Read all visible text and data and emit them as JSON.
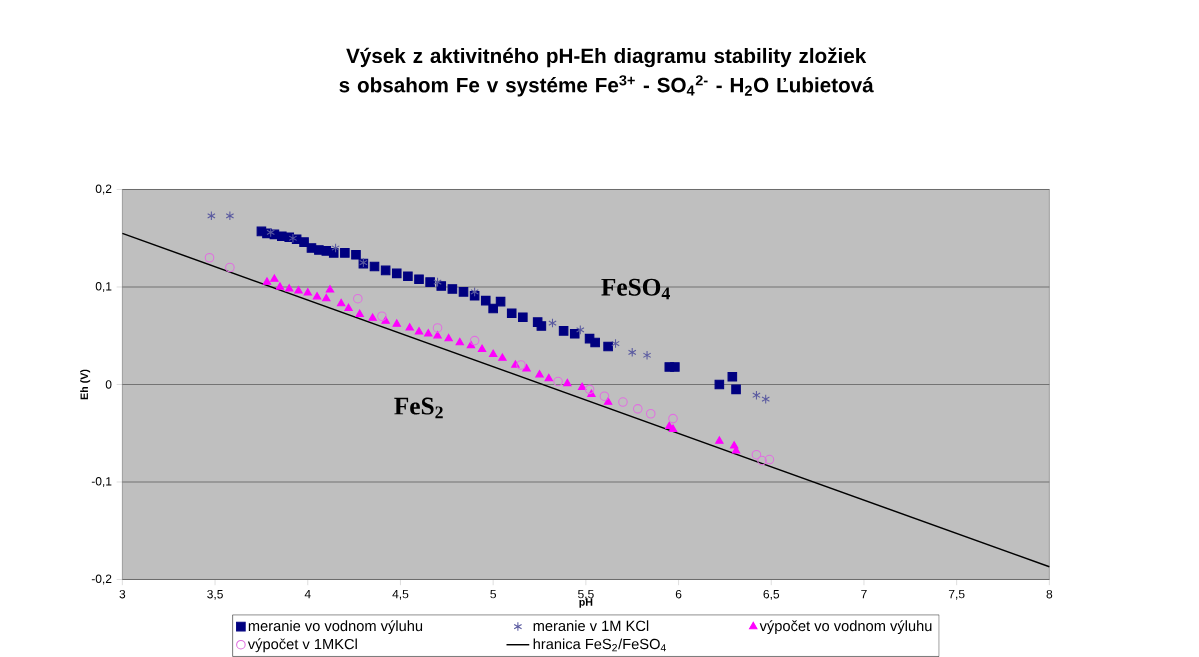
{
  "chart_data": {
    "type": "scatter",
    "title": "Výsek z aktivitného pH-Eh diagramu stability zložiek s obsahom Fe v systéme Fe$^{3+}$ -  SO$_{4}$$^{2-}$ - H$_{2}$O Ľubietová",
    "xlabel": "pH",
    "ylabel": "Eh (V)",
    "xlim": [
      3,
      8
    ],
    "ylim": [
      -0.2,
      0.2
    ],
    "xticks": [
      3,
      {
        "value": 3.5,
        "label": "3,5"
      },
      4,
      {
        "value": 4.5,
        "label": "4,5"
      },
      5,
      {
        "value": 5.5,
        "label": "5,5"
      },
      6,
      {
        "value": 6.5,
        "label": "6,5"
      },
      7,
      {
        "value": 7.5,
        "label": "7,5"
      },
      8
    ],
    "yticks": [
      {
        "value": -0.2,
        "label": "-0,2"
      },
      {
        "value": -0.1,
        "label": "-0,1"
      },
      0,
      {
        "value": 0.1,
        "label": "0,1"
      },
      {
        "value": 0.2,
        "label": "0,2"
      }
    ],
    "grid": "y",
    "legend": "bottom",
    "annotations": [
      "FeSO$_{4}$",
      "FeS$_{2}$"
    ],
    "series": [
      {
        "name": "meranie vo vodnom výluhu",
        "color": "#000080",
        "marker": "square",
        "x": [
          3.75,
          3.78,
          3.82,
          3.86,
          3.9,
          3.94,
          3.98,
          4.02,
          4.06,
          4.1,
          4.14,
          4.2,
          4.26,
          4.3,
          4.36,
          4.42,
          4.48,
          4.54,
          4.6,
          4.66,
          4.72,
          4.78,
          4.84,
          4.9,
          4.96,
          5.04,
          5.0,
          5.1,
          5.16,
          5.24,
          5.26,
          5.38,
          5.44,
          5.52,
          5.55,
          5.62,
          5.95,
          5.98,
          6.22,
          6.29,
          6.31
        ],
        "values": [
          0.157,
          0.155,
          0.154,
          0.152,
          0.151,
          0.149,
          0.146,
          0.14,
          0.138,
          0.137,
          0.135,
          0.135,
          0.133,
          0.124,
          0.121,
          0.117,
          0.114,
          0.111,
          0.108,
          0.105,
          0.101,
          0.098,
          0.095,
          0.091,
          0.086,
          0.085,
          0.078,
          0.073,
          0.069,
          0.064,
          0.06,
          0.055,
          0.052,
          0.047,
          0.043,
          0.039,
          0.018,
          0.018,
          0.0,
          0.008,
          -0.005
        ]
      },
      {
        "name": "meranie v 1M KCl",
        "color": "#5a5aa0",
        "marker": "cross",
        "x": [
          3.48,
          3.58,
          3.8,
          3.92,
          4.15,
          4.3,
          4.7,
          4.9,
          5.32,
          5.47,
          5.66,
          5.75,
          5.83,
          6.42,
          6.47
        ],
        "values": [
          0.173,
          0.173,
          0.156,
          0.15,
          0.14,
          0.125,
          0.105,
          0.095,
          0.063,
          0.056,
          0.042,
          0.033,
          0.03,
          -0.011,
          -0.015
        ]
      },
      {
        "name": "výpočet vo vodnom výluhu",
        "color": "#ff00ff",
        "marker": "triangle",
        "x": [
          3.78,
          3.82,
          3.85,
          3.9,
          3.95,
          4.0,
          4.05,
          4.12,
          4.1,
          4.18,
          4.22,
          4.28,
          4.35,
          4.42,
          4.48,
          4.55,
          4.6,
          4.65,
          4.7,
          4.76,
          4.82,
          4.88,
          4.94,
          5.0,
          5.05,
          5.12,
          5.18,
          5.25,
          5.3,
          5.4,
          5.48,
          5.53,
          5.62,
          5.95,
          5.97,
          6.22,
          6.3,
          6.31
        ],
        "values": [
          0.105,
          0.108,
          0.1,
          0.098,
          0.096,
          0.094,
          0.09,
          0.097,
          0.088,
          0.083,
          0.078,
          0.072,
          0.068,
          0.065,
          0.062,
          0.058,
          0.054,
          0.052,
          0.05,
          0.047,
          0.043,
          0.04,
          0.036,
          0.031,
          0.027,
          0.02,
          0.016,
          0.01,
          0.006,
          0.001,
          -0.003,
          -0.01,
          -0.018,
          -0.043,
          -0.046,
          -0.058,
          -0.063,
          -0.068
        ]
      },
      {
        "name": "výpočet v 1MKCl",
        "color": "#e070e0",
        "marker": "circle",
        "x": [
          3.47,
          3.58,
          4.27,
          4.4,
          4.7,
          4.9,
          5.15,
          5.35,
          5.52,
          5.6,
          5.7,
          5.78,
          5.85,
          5.97,
          6.42,
          6.45,
          6.49
        ],
        "values": [
          0.13,
          0.12,
          0.088,
          0.07,
          0.058,
          0.045,
          0.02,
          0.003,
          -0.005,
          -0.012,
          -0.018,
          -0.025,
          -0.03,
          -0.035,
          -0.072,
          -0.078,
          -0.077
        ]
      },
      {
        "name": "hranica FeS$_{2}$/FeSO$_{4}$",
        "type": "line",
        "color": "#000000",
        "marker": "none",
        "x": [
          3,
          8
        ],
        "values": [
          0.155,
          -0.187
        ]
      }
    ]
  }
}
